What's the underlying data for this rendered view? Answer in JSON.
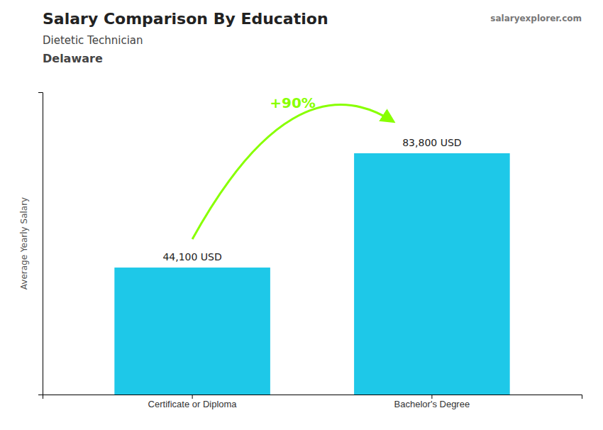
{
  "chart_data": {
    "type": "bar",
    "title": "Salary Comparison By Education",
    "subtitle": [
      "Dietetic Technician",
      "Delaware"
    ],
    "y_label": "Average Yearly Salary",
    "categories": [
      "Certificate or Diploma",
      "Bachelor's Degree"
    ],
    "values": [
      44100,
      83800
    ],
    "value_labels": [
      "44,100 USD",
      "83,800 USD"
    ],
    "data_labels": true,
    "color": "#1EC8E8",
    "ylim": [
      0,
      105000
    ],
    "yticks": [],
    "tick_labels": "x",
    "grid": false,
    "annotations": [
      {
        "text": "+90%",
        "color": "#88FF00"
      }
    ],
    "watermark": [
      "salary",
      "explorer",
      ".com"
    ]
  }
}
